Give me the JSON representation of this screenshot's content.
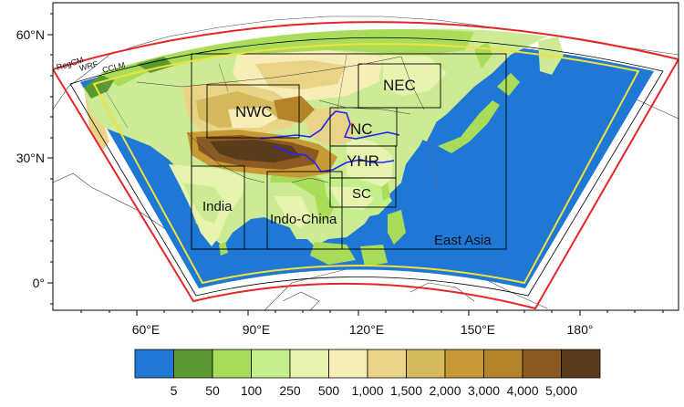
{
  "axes": {
    "lat_labels": [
      "60°N",
      "30°N",
      "0°"
    ],
    "lon_labels": [
      "60°E",
      "90°E",
      "120°E",
      "150°E",
      "180°"
    ]
  },
  "model_domains": [
    {
      "label": "RegCM",
      "color": "#e8242b"
    },
    {
      "label": "WRF",
      "color": "#2a2a2a"
    },
    {
      "label": "CCLM",
      "color": "#f0e23a"
    }
  ],
  "regions": {
    "nwc": "NWC",
    "nec": "NEC",
    "nc": "NC",
    "yhr": "YHR",
    "sc": "SC",
    "india": "India",
    "indochina": "Indo-China",
    "eastasia": "East Asia"
  },
  "colorbar": {
    "ticks": [
      "5",
      "50",
      "100",
      "250",
      "500",
      "1,000",
      "1,500",
      "2,000",
      "3,000",
      "4,000",
      "5,000"
    ],
    "colors": [
      "#1f78d6",
      "#5a9a33",
      "#a9dc59",
      "#c4ef8a",
      "#e6f4b0",
      "#f6edb7",
      "#e9d386",
      "#d7b95d",
      "#c79a35",
      "#b4832a",
      "#8b5a22",
      "#5a3b1c"
    ]
  },
  "colors": {
    "ocean": "#1f78d6",
    "river": "#2222ff",
    "domain_outer": "#e8242b",
    "domain_inner": "#f0e23a"
  }
}
